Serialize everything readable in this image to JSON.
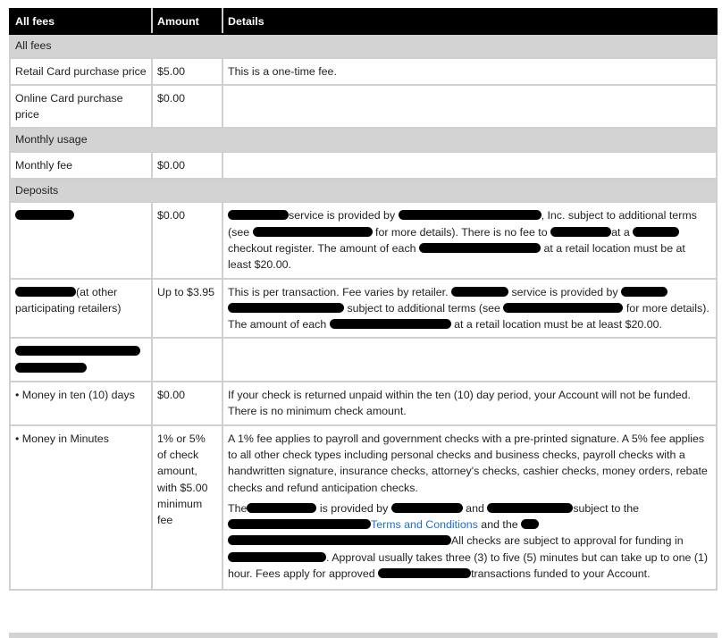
{
  "header": {
    "col1": "All fees",
    "col2": "Amount",
    "col3": "Details"
  },
  "sections": {
    "all_fees": "All fees",
    "monthly_usage": "Monthly usage",
    "deposits": "Deposits"
  },
  "rows": {
    "retail": {
      "name": "Retail Card purchase price",
      "amount": "$5.00",
      "details": "This is a one-time fee."
    },
    "online": {
      "name": "Online Card purchase price",
      "amount": "$0.00",
      "details": ""
    },
    "monthly": {
      "name": "Monthly fee",
      "amount": "$0.00",
      "details": ""
    },
    "deposit1": {
      "amount": "$0.00",
      "d1": "service is provided by",
      "d2": ", Inc. subject to additional terms (see",
      "d3": "for more details). There is no fee to",
      "d4": "at a",
      "d5": "checkout register. The amount of each",
      "d6": "at a retail location must be at least $20.00."
    },
    "deposit2": {
      "name": "(at other participating retailers)",
      "amount": "Up to $3.95",
      "d1": "This is per transaction. Fee varies by retailer.",
      "d2": "service is provided by",
      "d3": "subject to additional terms (see",
      "d4": "for more details). The amount of each",
      "d5": "at a retail location must be at least $20.00."
    },
    "ten_days": {
      "name": "• Money in ten (10) days",
      "amount": "$0.00",
      "details": "If your check is returned unpaid within the ten (10) day period, your Account will not be funded. There is no minimum check amount."
    },
    "minutes": {
      "name": "• Money in Minutes",
      "amount": "1% or 5% of check amount, with $5.00 minimum fee",
      "p1": "A 1% fee applies to payroll and government checks with a pre-printed signature. A 5% fee applies to all other check types including personal checks and business checks, payroll checks with a handwritten signature, insurance checks, attorney's checks, cashier checks, money orders, rebate checks and refund anticipation checks.",
      "p2a": "The",
      "p2b": "is provided by",
      "p2c": "and",
      "p2d": "subject to the",
      "p2link": "Terms and Conditions",
      "p2e": "and the",
      "p2f": "All checks are subject to approval for funding in",
      "p2g": ". Approval usually takes three (3) to five (5) minutes but can take up to one (1) hour. Fees apply for approved",
      "p2h": "transactions funded to your Account."
    }
  },
  "colors": {
    "header_bg": "#000000",
    "section_bg": "#d3d3d3",
    "link": "#1a6fd6"
  }
}
